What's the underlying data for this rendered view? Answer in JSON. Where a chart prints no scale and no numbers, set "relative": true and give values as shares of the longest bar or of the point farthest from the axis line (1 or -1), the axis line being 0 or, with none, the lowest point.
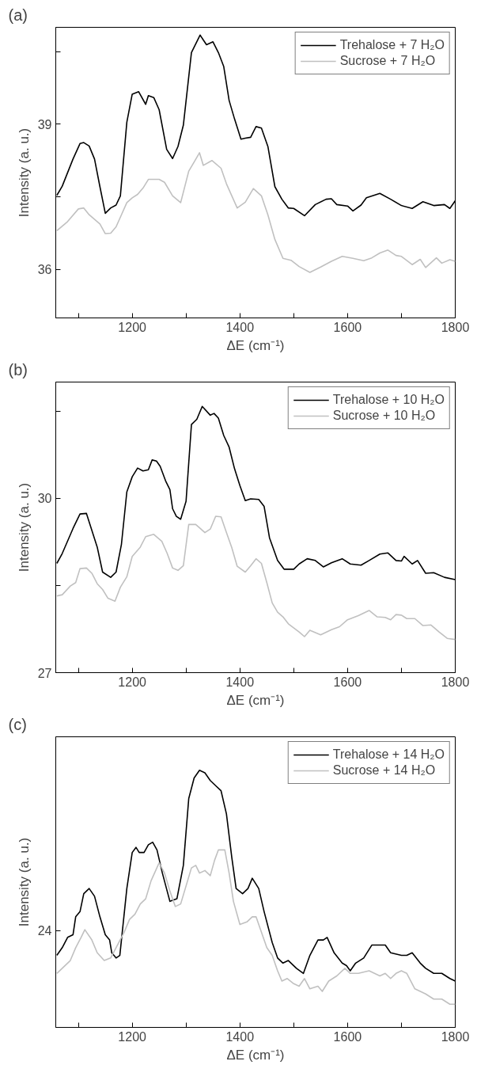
{
  "chart_data": [
    {
      "type": "line",
      "title": "(a)",
      "xlabel": "ΔE (cm⁻¹)",
      "ylabel": "Intensity (a. u.)",
      "xlim": [
        1058,
        1800
      ],
      "xticks": [
        {
          "value": 1100,
          "label": null
        },
        1200,
        {
          "value": 1300,
          "label": null
        },
        1400,
        {
          "value": 1500,
          "label": null
        },
        1600,
        {
          "value": 1700,
          "label": null
        },
        1800
      ],
      "ylim": [
        35,
        41
      ],
      "yticks": [
        36,
        {
          "value": 37.5,
          "label": null
        },
        39,
        {
          "value": 40.5,
          "label": null
        }
      ],
      "legend": "top right",
      "grid": false,
      "line_style": "solid",
      "marker": "none",
      "series": [
        {
          "name": "Trehalose + 7 H₂O",
          "color": "#000000",
          "x": [
            1060,
            1070,
            1090,
            1103,
            1110,
            1120,
            1130,
            1140,
            1150,
            1160,
            1170,
            1178,
            1190,
            1200,
            1212,
            1225,
            1230,
            1240,
            1250,
            1264,
            1275,
            1285,
            1295,
            1310,
            1326,
            1338,
            1350,
            1360,
            1370,
            1380,
            1390,
            1402,
            1410,
            1420,
            1430,
            1440,
            1452,
            1465,
            1478,
            1490,
            1500,
            1520,
            1540,
            1560,
            1570,
            1580,
            1600,
            1610,
            1625,
            1635,
            1660,
            1680,
            1700,
            1720,
            1740,
            1760,
            1780,
            1790,
            1800
          ],
          "values": [
            37.53,
            37.72,
            38.28,
            38.6,
            38.62,
            38.55,
            38.28,
            37.71,
            37.16,
            37.27,
            37.33,
            37.52,
            39.04,
            39.62,
            39.67,
            39.41,
            39.59,
            39.55,
            39.3,
            38.48,
            38.29,
            38.54,
            38.98,
            40.48,
            40.84,
            40.64,
            40.7,
            40.48,
            40.19,
            39.49,
            39.11,
            38.69,
            38.71,
            38.73,
            38.95,
            38.92,
            38.54,
            37.71,
            37.45,
            37.27,
            37.26,
            37.11,
            37.34,
            37.45,
            37.46,
            37.34,
            37.31,
            37.21,
            37.33,
            37.48,
            37.57,
            37.45,
            37.32,
            37.26,
            37.4,
            37.32,
            37.34,
            37.26,
            37.42
          ]
        },
        {
          "name": "Sucrose + 7 H₂O",
          "color": "#c0c0c0",
          "x": [
            1060,
            1080,
            1100,
            1110,
            1120,
            1140,
            1150,
            1160,
            1170,
            1180,
            1190,
            1200,
            1210,
            1220,
            1230,
            1250,
            1260,
            1275,
            1290,
            1305,
            1315,
            1325,
            1332,
            1348,
            1365,
            1375,
            1385,
            1395,
            1410,
            1425,
            1440,
            1452,
            1465,
            1480,
            1495,
            1510,
            1530,
            1550,
            1570,
            1590,
            1610,
            1630,
            1645,
            1660,
            1675,
            1690,
            1700,
            1720,
            1735,
            1745,
            1765,
            1775,
            1790,
            1800
          ],
          "values": [
            36.8,
            36.99,
            37.25,
            37.27,
            37.13,
            36.94,
            36.74,
            36.75,
            36.88,
            37.13,
            37.38,
            37.48,
            37.55,
            37.68,
            37.86,
            37.86,
            37.8,
            37.52,
            37.38,
            38.03,
            38.22,
            38.41,
            38.15,
            38.25,
            38.09,
            37.77,
            37.52,
            37.27,
            37.39,
            37.67,
            37.52,
            37.13,
            36.62,
            36.23,
            36.19,
            36.06,
            35.94,
            36.05,
            36.17,
            36.27,
            36.23,
            36.18,
            36.24,
            36.34,
            36.4,
            36.29,
            36.27,
            36.1,
            36.21,
            36.04,
            36.24,
            36.13,
            36.2,
            36.17
          ]
        }
      ]
    },
    {
      "type": "line",
      "title": "(b)",
      "xlabel": "ΔE (cm⁻¹)",
      "ylabel": "Intensity (a. u.)",
      "xlim": [
        1058,
        1800
      ],
      "xticks": [
        {
          "value": 1100,
          "label": null
        },
        1200,
        {
          "value": 1300,
          "label": null
        },
        1400,
        {
          "value": 1500,
          "label": null
        },
        1600,
        {
          "value": 1700,
          "label": null
        },
        1800
      ],
      "ylim": [
        27,
        32
      ],
      "yticks": [
        27,
        {
          "value": 28.5,
          "label": null
        },
        30,
        {
          "value": 31.5,
          "label": null
        }
      ],
      "legend": "top right",
      "grid": false,
      "line_style": "solid",
      "marker": "none",
      "series": [
        {
          "name": "Trehalose + 10 H₂O",
          "color": "#000000",
          "x": [
            1060,
            1070,
            1090,
            1103,
            1115,
            1125,
            1135,
            1145,
            1160,
            1170,
            1180,
            1190,
            1200,
            1210,
            1220,
            1230,
            1237,
            1245,
            1252,
            1262,
            1270,
            1275,
            1282,
            1290,
            1300,
            1310,
            1320,
            1330,
            1345,
            1352,
            1360,
            1370,
            1380,
            1390,
            1400,
            1410,
            1420,
            1435,
            1445,
            1455,
            1470,
            1482,
            1500,
            1510,
            1525,
            1540,
            1555,
            1570,
            1590,
            1605,
            1625,
            1640,
            1660,
            1675,
            1690,
            1700,
            1705,
            1720,
            1730,
            1745,
            1760,
            1780,
            1800
          ],
          "values": [
            28.88,
            29.05,
            29.48,
            29.73,
            29.74,
            29.45,
            29.16,
            28.73,
            28.64,
            28.73,
            29.21,
            30.11,
            30.37,
            30.52,
            30.47,
            30.49,
            30.66,
            30.64,
            30.55,
            30.3,
            30.15,
            29.82,
            29.69,
            29.64,
            29.95,
            31.27,
            31.36,
            31.58,
            31.43,
            31.46,
            31.38,
            31.08,
            30.88,
            30.51,
            30.22,
            29.96,
            29.99,
            29.98,
            29.86,
            29.32,
            28.93,
            28.78,
            28.78,
            28.87,
            28.96,
            28.93,
            28.82,
            28.89,
            28.96,
            28.87,
            28.85,
            28.93,
            29.04,
            29.06,
            28.93,
            28.92,
            29.0,
            28.87,
            28.93,
            28.71,
            28.72,
            28.64,
            28.6
          ]
        },
        {
          "name": "Sucrose + 10 H₂O",
          "color": "#c0c0c0",
          "x": [
            1060,
            1070,
            1085,
            1095,
            1103,
            1115,
            1125,
            1135,
            1145,
            1155,
            1168,
            1178,
            1190,
            1200,
            1215,
            1225,
            1240,
            1255,
            1265,
            1275,
            1285,
            1295,
            1305,
            1318,
            1335,
            1345,
            1355,
            1365,
            1375,
            1385,
            1395,
            1410,
            1420,
            1430,
            1440,
            1450,
            1460,
            1470,
            1480,
            1490,
            1510,
            1520,
            1530,
            1550,
            1570,
            1585,
            1600,
            1620,
            1640,
            1655,
            1670,
            1680,
            1690,
            1700,
            1710,
            1725,
            1740,
            1755,
            1770,
            1785,
            1800
          ],
          "values": [
            28.32,
            28.34,
            28.49,
            28.55,
            28.79,
            28.8,
            28.71,
            28.53,
            28.43,
            28.28,
            28.23,
            28.47,
            28.65,
            29.0,
            29.16,
            29.34,
            29.38,
            29.26,
            29.05,
            28.8,
            28.76,
            28.84,
            29.55,
            29.55,
            29.41,
            29.47,
            29.69,
            29.68,
            29.41,
            29.15,
            28.83,
            28.73,
            28.84,
            28.96,
            28.88,
            28.55,
            28.2,
            28.04,
            27.96,
            27.84,
            27.7,
            27.62,
            27.73,
            27.65,
            27.74,
            27.79,
            27.91,
            27.98,
            28.07,
            27.96,
            27.95,
            27.91,
            28.0,
            27.99,
            27.93,
            27.93,
            27.81,
            27.82,
            27.7,
            27.59,
            27.57
          ]
        }
      ]
    },
    {
      "type": "line",
      "title": "(c)",
      "xlabel": "ΔE (cm⁻¹)",
      "ylabel": "Intensity (a. u.)",
      "xlim": [
        1058,
        1800
      ],
      "xticks": [
        {
          "value": 1100,
          "label": null
        },
        1200,
        {
          "value": 1300,
          "label": null
        },
        1400,
        {
          "value": 1500,
          "label": null
        },
        1600,
        {
          "value": 1700,
          "label": null
        },
        1800
      ],
      "relative": true,
      "annotations": [
        "24"
      ],
      "legend": "top right",
      "grid": false,
      "line_style": "solid",
      "marker": "none",
      "series": [
        {
          "name": "Trehalose + 14 H₂O",
          "color": "#000000",
          "x": [
            1060,
            1070,
            1080,
            1090,
            1095,
            1103,
            1110,
            1120,
            1130,
            1140,
            1150,
            1158,
            1162,
            1170,
            1177,
            1190,
            1200,
            1207,
            1213,
            1222,
            1230,
            1238,
            1246,
            1256,
            1270,
            1283,
            1295,
            1305,
            1315,
            1325,
            1335,
            1345,
            1355,
            1365,
            1375,
            1385,
            1393,
            1405,
            1415,
            1423,
            1435,
            1445,
            1460,
            1470,
            1480,
            1490,
            1505,
            1518,
            1530,
            1545,
            1555,
            1562,
            1575,
            1590,
            1598,
            1605,
            1615,
            1630,
            1645,
            1660,
            1670,
            1680,
            1700,
            1710,
            1720,
            1735,
            1745,
            1760,
            1775,
            1790,
            1800
          ],
          "values": [
            0.28,
            0.31,
            0.35,
            0.36,
            0.43,
            0.45,
            0.52,
            0.54,
            0.51,
            0.43,
            0.36,
            0.34,
            0.29,
            0.27,
            0.28,
            0.54,
            0.68,
            0.7,
            0.68,
            0.68,
            0.71,
            0.72,
            0.69,
            0.6,
            0.49,
            0.5,
            0.63,
            0.89,
            0.97,
            1,
            0.99,
            0.96,
            0.94,
            0.92,
            0.83,
            0.66,
            0.54,
            0.52,
            0.54,
            0.58,
            0.54,
            0.45,
            0.33,
            0.27,
            0.25,
            0.26,
            0.23,
            0.21,
            0.28,
            0.34,
            0.34,
            0.35,
            0.29,
            0.25,
            0.24,
            0.22,
            0.25,
            0.27,
            0.32,
            0.32,
            0.32,
            0.29,
            0.28,
            0.28,
            0.29,
            0.25,
            0.23,
            0.21,
            0.21,
            0.19,
            0.18
          ]
        },
        {
          "name": "Sucrose + 14 H₂O",
          "color": "#c0c0c0",
          "x": [
            1060,
            1070,
            1085,
            1095,
            1105,
            1112,
            1125,
            1135,
            1148,
            1160,
            1175,
            1185,
            1195,
            1205,
            1215,
            1225,
            1235,
            1250,
            1260,
            1270,
            1280,
            1290,
            1300,
            1310,
            1318,
            1325,
            1335,
            1345,
            1353,
            1360,
            1372,
            1380,
            1388,
            1400,
            1413,
            1423,
            1430,
            1440,
            1450,
            1460,
            1470,
            1478,
            1488,
            1500,
            1510,
            1520,
            1530,
            1545,
            1553,
            1565,
            1580,
            1595,
            1605,
            1620,
            1640,
            1660,
            1670,
            1680,
            1690,
            1700,
            1710,
            1725,
            1745,
            1760,
            1775,
            1790,
            1800
          ],
          "values": [
            0.21,
            0.23,
            0.26,
            0.31,
            0.35,
            0.38,
            0.34,
            0.29,
            0.26,
            0.27,
            0.33,
            0.37,
            0.42,
            0.44,
            0.48,
            0.5,
            0.57,
            0.64,
            0.6,
            0.53,
            0.47,
            0.48,
            0.55,
            0.62,
            0.63,
            0.6,
            0.61,
            0.59,
            0.65,
            0.69,
            0.69,
            0.6,
            0.49,
            0.4,
            0.41,
            0.43,
            0.43,
            0.37,
            0.31,
            0.28,
            0.22,
            0.18,
            0.19,
            0.17,
            0.16,
            0.19,
            0.15,
            0.16,
            0.14,
            0.18,
            0.2,
            0.23,
            0.21,
            0.21,
            0.22,
            0.2,
            0.21,
            0.19,
            0.21,
            0.22,
            0.21,
            0.15,
            0.13,
            0.11,
            0.11,
            0.09,
            0.09
          ]
        }
      ]
    }
  ]
}
